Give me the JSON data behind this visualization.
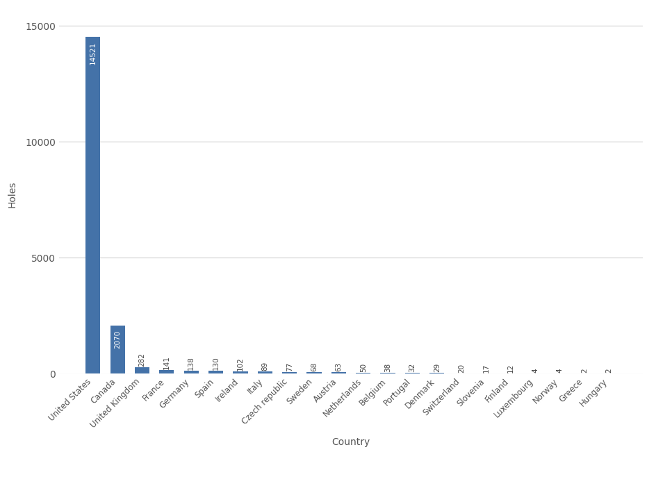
{
  "categories": [
    "United States",
    "Canada",
    "United Kingdom",
    "France",
    "Germany",
    "Spain",
    "Ireland",
    "Italy",
    "Czech republic",
    "Sweden",
    "Austria",
    "Netherlands",
    "Belgium",
    "Portugal",
    "Denmark",
    "Switzerland",
    "Slovenia",
    "Finland",
    "Luxembourg",
    "Norway",
    "Greece",
    "Hungary"
  ],
  "values": [
    14521,
    2070,
    282,
    141,
    138,
    130,
    102,
    89,
    77,
    68,
    63,
    50,
    38,
    32,
    29,
    20,
    17,
    12,
    4,
    4,
    2,
    2
  ],
  "bar_color": "#4472a8",
  "ylabel": "Holes",
  "xlabel": "Country",
  "ylim": [
    0,
    15500
  ],
  "yticks": [
    0,
    5000,
    10000,
    15000
  ],
  "background_color": "#ffffff",
  "grid_color": "#d0d0d0",
  "label_fontsize": 8.5,
  "axis_label_fontsize": 10,
  "bar_label_color_threshold": 500,
  "bar_label_fontsize": 7.5
}
